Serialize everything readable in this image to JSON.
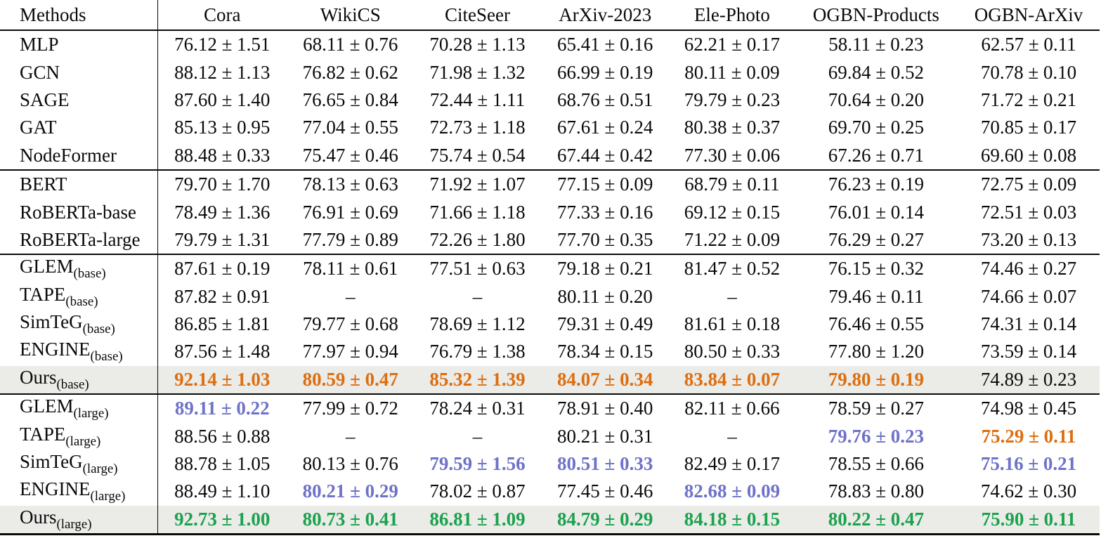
{
  "table": {
    "columns": [
      "Methods",
      "Cora",
      "WikiCS",
      "CiteSeer",
      "ArXiv-2023",
      "Ele-Photo",
      "OGBN-Products",
      "OGBN-ArXiv"
    ],
    "colors": {
      "orange": "#dd6e0f",
      "blue": "#6e72c8",
      "green": "#1ba24d",
      "highlight_bg": "#ebebe8"
    },
    "groups": [
      {
        "rows": [
          {
            "method": "MLP",
            "sub": "",
            "highlight": false,
            "cells": [
              {
                "text": "76.12 ± 1.51",
                "style": "plain"
              },
              {
                "text": "68.11 ± 0.76",
                "style": "plain"
              },
              {
                "text": "70.28 ± 1.13",
                "style": "plain"
              },
              {
                "text": "65.41 ± 0.16",
                "style": "plain"
              },
              {
                "text": "62.21 ± 0.17",
                "style": "plain"
              },
              {
                "text": "58.11 ± 0.23",
                "style": "plain"
              },
              {
                "text": "62.57 ± 0.11",
                "style": "plain"
              }
            ]
          },
          {
            "method": "GCN",
            "sub": "",
            "highlight": false,
            "cells": [
              {
                "text": "88.12 ± 1.13",
                "style": "plain"
              },
              {
                "text": "76.82 ± 0.62",
                "style": "plain"
              },
              {
                "text": "71.98 ± 1.32",
                "style": "plain"
              },
              {
                "text": "66.99 ± 0.19",
                "style": "plain"
              },
              {
                "text": "80.11 ± 0.09",
                "style": "plain"
              },
              {
                "text": "69.84 ± 0.52",
                "style": "plain"
              },
              {
                "text": "70.78 ± 0.10",
                "style": "plain"
              }
            ]
          },
          {
            "method": "SAGE",
            "sub": "",
            "highlight": false,
            "cells": [
              {
                "text": "87.60 ± 1.40",
                "style": "plain"
              },
              {
                "text": "76.65 ± 0.84",
                "style": "plain"
              },
              {
                "text": "72.44 ± 1.11",
                "style": "plain"
              },
              {
                "text": "68.76 ± 0.51",
                "style": "plain"
              },
              {
                "text": "79.79 ± 0.23",
                "style": "plain"
              },
              {
                "text": "70.64 ± 0.20",
                "style": "plain"
              },
              {
                "text": "71.72 ± 0.21",
                "style": "plain"
              }
            ]
          },
          {
            "method": "GAT",
            "sub": "",
            "highlight": false,
            "cells": [
              {
                "text": "85.13 ± 0.95",
                "style": "plain"
              },
              {
                "text": "77.04 ± 0.55",
                "style": "plain"
              },
              {
                "text": "72.73 ± 1.18",
                "style": "plain"
              },
              {
                "text": "67.61 ± 0.24",
                "style": "plain"
              },
              {
                "text": "80.38 ± 0.37",
                "style": "plain"
              },
              {
                "text": "69.70 ± 0.25",
                "style": "plain"
              },
              {
                "text": "70.85 ± 0.17",
                "style": "plain"
              }
            ]
          },
          {
            "method": "NodeFormer",
            "sub": "",
            "highlight": false,
            "cells": [
              {
                "text": "88.48 ± 0.33",
                "style": "plain"
              },
              {
                "text": "75.47 ± 0.46",
                "style": "plain"
              },
              {
                "text": "75.74 ± 0.54",
                "style": "plain"
              },
              {
                "text": "67.44 ± 0.42",
                "style": "plain"
              },
              {
                "text": "77.30 ± 0.06",
                "style": "plain"
              },
              {
                "text": "67.26 ± 0.71",
                "style": "plain"
              },
              {
                "text": "69.60 ± 0.08",
                "style": "plain"
              }
            ]
          }
        ]
      },
      {
        "rows": [
          {
            "method": "BERT",
            "sub": "",
            "highlight": false,
            "cells": [
              {
                "text": "79.70 ± 1.70",
                "style": "plain"
              },
              {
                "text": "78.13 ± 0.63",
                "style": "plain"
              },
              {
                "text": "71.92 ± 1.07",
                "style": "plain"
              },
              {
                "text": "77.15 ± 0.09",
                "style": "plain"
              },
              {
                "text": "68.79 ± 0.11",
                "style": "plain"
              },
              {
                "text": "76.23 ± 0.19",
                "style": "plain"
              },
              {
                "text": "72.75 ± 0.09",
                "style": "plain"
              }
            ]
          },
          {
            "method": "RoBERTa-base",
            "sub": "",
            "highlight": false,
            "cells": [
              {
                "text": "78.49 ± 1.36",
                "style": "plain"
              },
              {
                "text": "76.91 ± 0.69",
                "style": "plain"
              },
              {
                "text": "71.66 ± 1.18",
                "style": "plain"
              },
              {
                "text": "77.33 ± 0.16",
                "style": "plain"
              },
              {
                "text": "69.12 ± 0.15",
                "style": "plain"
              },
              {
                "text": "76.01 ± 0.14",
                "style": "plain"
              },
              {
                "text": "72.51 ± 0.03",
                "style": "plain"
              }
            ]
          },
          {
            "method": "RoBERTa-large",
            "sub": "",
            "highlight": false,
            "cells": [
              {
                "text": "79.79 ± 1.31",
                "style": "plain"
              },
              {
                "text": "77.79 ± 0.89",
                "style": "plain"
              },
              {
                "text": "72.26 ± 1.80",
                "style": "plain"
              },
              {
                "text": "77.70 ± 0.35",
                "style": "plain"
              },
              {
                "text": "71.22 ± 0.09",
                "style": "plain"
              },
              {
                "text": "76.29 ± 0.27",
                "style": "plain"
              },
              {
                "text": "73.20 ± 0.13",
                "style": "plain"
              }
            ]
          }
        ]
      },
      {
        "rows": [
          {
            "method": "GLEM",
            "sub": "(base)",
            "highlight": false,
            "cells": [
              {
                "text": "87.61 ± 0.19",
                "style": "plain"
              },
              {
                "text": "78.11 ± 0.61",
                "style": "plain"
              },
              {
                "text": "77.51 ± 0.63",
                "style": "plain"
              },
              {
                "text": "79.18 ± 0.21",
                "style": "plain"
              },
              {
                "text": "81.47 ± 0.52",
                "style": "plain"
              },
              {
                "text": "76.15 ± 0.32",
                "style": "plain"
              },
              {
                "text": "74.46 ± 0.27",
                "style": "plain"
              }
            ]
          },
          {
            "method": "TAPE",
            "sub": "(base)",
            "highlight": false,
            "cells": [
              {
                "text": "87.82 ± 0.91",
                "style": "plain"
              },
              {
                "text": "–",
                "style": "plain"
              },
              {
                "text": "–",
                "style": "plain"
              },
              {
                "text": "80.11 ± 0.20",
                "style": "plain"
              },
              {
                "text": "–",
                "style": "plain"
              },
              {
                "text": "79.46 ± 0.11",
                "style": "plain"
              },
              {
                "text": "74.66 ± 0.07",
                "style": "plain"
              }
            ]
          },
          {
            "method": "SimTeG",
            "sub": "(base)",
            "highlight": false,
            "cells": [
              {
                "text": "86.85 ± 1.81",
                "style": "plain"
              },
              {
                "text": "79.77 ± 0.68",
                "style": "plain"
              },
              {
                "text": "78.69 ± 1.12",
                "style": "plain"
              },
              {
                "text": "79.31 ± 0.49",
                "style": "plain"
              },
              {
                "text": "81.61 ± 0.18",
                "style": "plain"
              },
              {
                "text": "76.46 ± 0.55",
                "style": "plain"
              },
              {
                "text": "74.31 ± 0.14",
                "style": "plain"
              }
            ]
          },
          {
            "method": "ENGINE",
            "sub": "(base)",
            "highlight": false,
            "cells": [
              {
                "text": "87.56 ± 1.48",
                "style": "plain"
              },
              {
                "text": "77.97 ± 0.94",
                "style": "plain"
              },
              {
                "text": "76.79 ± 1.38",
                "style": "plain"
              },
              {
                "text": "78.34 ± 0.15",
                "style": "plain"
              },
              {
                "text": "80.50 ± 0.33",
                "style": "plain"
              },
              {
                "text": "77.80 ± 1.20",
                "style": "plain"
              },
              {
                "text": "73.59 ± 0.14",
                "style": "plain"
              }
            ]
          },
          {
            "method": "Ours",
            "sub": "(base)",
            "highlight": true,
            "cells": [
              {
                "text": "92.14 ± 1.03",
                "style": "orange"
              },
              {
                "text": "80.59 ± 0.47",
                "style": "orange"
              },
              {
                "text": "85.32 ± 1.39",
                "style": "orange"
              },
              {
                "text": "84.07 ± 0.34",
                "style": "orange"
              },
              {
                "text": "83.84 ± 0.07",
                "style": "orange"
              },
              {
                "text": "79.80 ± 0.19",
                "style": "orange"
              },
              {
                "text": "74.89 ± 0.23",
                "style": "plain"
              }
            ]
          }
        ]
      },
      {
        "rows": [
          {
            "method": "GLEM",
            "sub": "(large)",
            "highlight": false,
            "cells": [
              {
                "text": "89.11 ± 0.22",
                "style": "blue"
              },
              {
                "text": "77.99 ± 0.72",
                "style": "plain"
              },
              {
                "text": "78.24 ± 0.31",
                "style": "plain"
              },
              {
                "text": "78.91 ± 0.40",
                "style": "plain"
              },
              {
                "text": "82.11 ± 0.66",
                "style": "plain"
              },
              {
                "text": "78.59 ± 0.27",
                "style": "plain"
              },
              {
                "text": "74.98 ± 0.45",
                "style": "plain"
              }
            ]
          },
          {
            "method": "TAPE",
            "sub": "(large)",
            "highlight": false,
            "cells": [
              {
                "text": "88.56 ± 0.88",
                "style": "plain"
              },
              {
                "text": "–",
                "style": "plain"
              },
              {
                "text": "–",
                "style": "plain"
              },
              {
                "text": "80.21 ± 0.31",
                "style": "plain"
              },
              {
                "text": "–",
                "style": "plain"
              },
              {
                "text": "79.76 ± 0.23",
                "style": "blue"
              },
              {
                "text": "75.29 ± 0.11",
                "style": "orange"
              }
            ]
          },
          {
            "method": "SimTeG",
            "sub": "(large)",
            "highlight": false,
            "cells": [
              {
                "text": "88.78 ± 1.05",
                "style": "plain"
              },
              {
                "text": "80.13 ± 0.76",
                "style": "plain"
              },
              {
                "text": "79.59 ± 1.56",
                "style": "blue"
              },
              {
                "text": "80.51 ± 0.33",
                "style": "blue"
              },
              {
                "text": "82.49 ± 0.17",
                "style": "plain"
              },
              {
                "text": "78.55 ± 0.66",
                "style": "plain"
              },
              {
                "text": "75.16 ± 0.21",
                "style": "blue"
              }
            ]
          },
          {
            "method": "ENGINE",
            "sub": "(large)",
            "highlight": false,
            "cells": [
              {
                "text": "88.49 ± 1.10",
                "style": "plain"
              },
              {
                "text": "80.21 ± 0.29",
                "style": "blue"
              },
              {
                "text": "78.02 ± 0.87",
                "style": "plain"
              },
              {
                "text": "77.45 ± 0.46",
                "style": "plain"
              },
              {
                "text": "82.68 ± 0.09",
                "style": "blue"
              },
              {
                "text": "78.83 ± 0.80",
                "style": "plain"
              },
              {
                "text": "74.62 ± 0.30",
                "style": "plain"
              }
            ]
          },
          {
            "method": "Ours",
            "sub": "(large)",
            "highlight": true,
            "cells": [
              {
                "text": "92.73 ± 1.00",
                "style": "green"
              },
              {
                "text": "80.73 ± 0.41",
                "style": "green"
              },
              {
                "text": "86.81 ± 1.09",
                "style": "green"
              },
              {
                "text": "84.79 ± 0.29",
                "style": "green"
              },
              {
                "text": "84.18 ± 0.15",
                "style": "green"
              },
              {
                "text": "80.22 ± 0.47",
                "style": "green"
              },
              {
                "text": "75.90 ± 0.11",
                "style": "green"
              }
            ]
          }
        ]
      }
    ]
  }
}
